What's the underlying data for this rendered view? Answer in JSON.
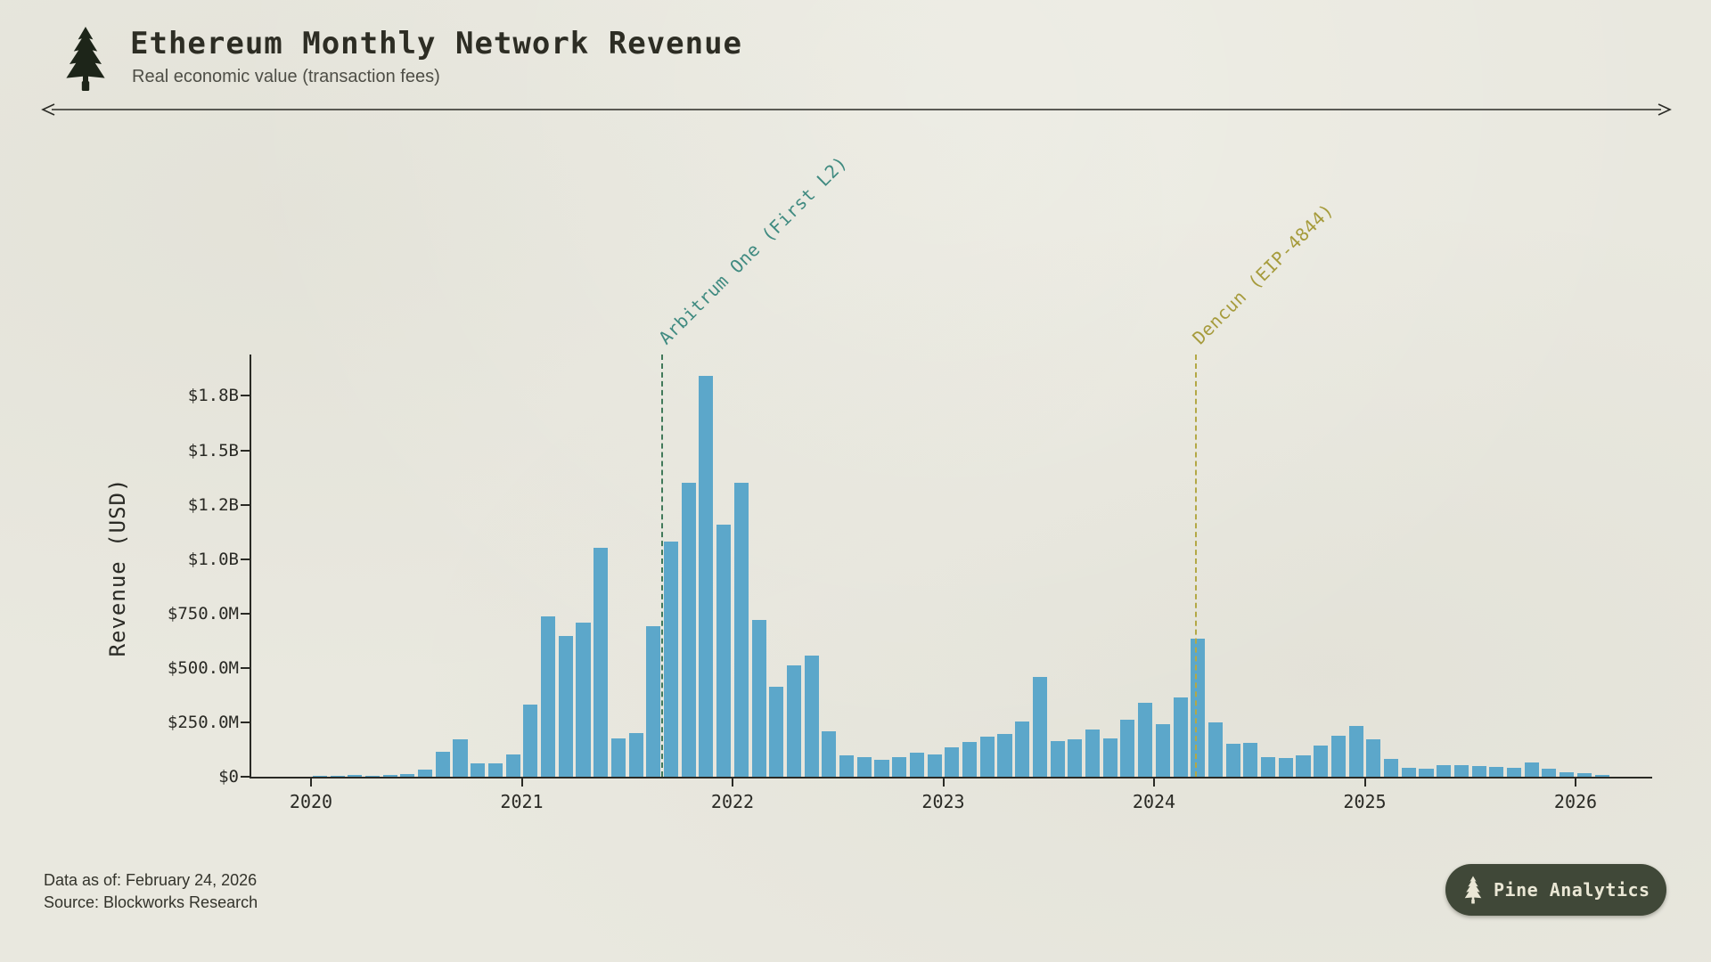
{
  "header": {
    "title": "Ethereum Monthly Network Revenue",
    "subtitle": "Real economic value (transaction fees)"
  },
  "footer": {
    "data_as_of": "Data as of: February 24, 2026",
    "source": "Source: Blockworks Research"
  },
  "badge": {
    "label": "Pine Analytics"
  },
  "colors": {
    "background": "#e9e8df",
    "bar": "#5ca7ca",
    "ink": "#2a2a25",
    "arbitrum_line": "#41795a",
    "arbitrum_text": "#3f8a80",
    "dencun_line": "#b3a846",
    "dencun_text": "#a69b3c"
  },
  "chart_data": {
    "type": "bar",
    "title": "Ethereum Monthly Network Revenue",
    "subtitle": "Real economic value (transaction fees)",
    "xlabel": "",
    "ylabel": "Revenue (USD)",
    "unit": "USD millions",
    "grid": false,
    "legend": false,
    "ylim": [
      0,
      1940
    ],
    "y_ticks": [
      {
        "value": 0,
        "label": "$0"
      },
      {
        "value": 250,
        "label": "$250.0M"
      },
      {
        "value": 500,
        "label": "$500.0M"
      },
      {
        "value": 750,
        "label": "$750.0M"
      },
      {
        "value": 1000,
        "label": "$1.0B"
      },
      {
        "value": 1250,
        "label": "$1.2B"
      },
      {
        "value": 1500,
        "label": "$1.5B"
      },
      {
        "value": 1750,
        "label": "$1.8B"
      }
    ],
    "x_ticks": [
      "2020",
      "2021",
      "2022",
      "2023",
      "2024",
      "2025",
      "2026"
    ],
    "months": [
      "2020-01",
      "2020-02",
      "2020-03",
      "2020-04",
      "2020-05",
      "2020-06",
      "2020-07",
      "2020-08",
      "2020-09",
      "2020-10",
      "2020-11",
      "2020-12",
      "2021-01",
      "2021-02",
      "2021-03",
      "2021-04",
      "2021-05",
      "2021-06",
      "2021-07",
      "2021-08",
      "2021-09",
      "2021-10",
      "2021-11",
      "2021-12",
      "2022-01",
      "2022-02",
      "2022-03",
      "2022-04",
      "2022-05",
      "2022-06",
      "2022-07",
      "2022-08",
      "2022-09",
      "2022-10",
      "2022-11",
      "2022-12",
      "2023-01",
      "2023-02",
      "2023-03",
      "2023-04",
      "2023-05",
      "2023-06",
      "2023-07",
      "2023-08",
      "2023-09",
      "2023-10",
      "2023-11",
      "2023-12",
      "2024-01",
      "2024-02",
      "2024-03",
      "2024-04",
      "2024-05",
      "2024-06",
      "2024-07",
      "2024-08",
      "2024-09",
      "2024-10",
      "2024-11",
      "2024-12",
      "2025-01",
      "2025-02",
      "2025-03",
      "2025-04",
      "2025-05",
      "2025-06",
      "2025-07",
      "2025-08",
      "2025-09",
      "2025-10",
      "2025-11",
      "2025-12",
      "2026-01",
      "2026-02"
    ],
    "values_musd": [
      3,
      4,
      7,
      5,
      9,
      14,
      32,
      115,
      172,
      62,
      60,
      102,
      330,
      735,
      645,
      710,
      1050,
      175,
      200,
      690,
      1080,
      1350,
      1840,
      1160,
      1350,
      720,
      415,
      510,
      555,
      210,
      100,
      92,
      78,
      88,
      112,
      104,
      135,
      160,
      185,
      195,
      255,
      460,
      165,
      170,
      215,
      175,
      260,
      340,
      240,
      365,
      635,
      250,
      150,
      155,
      90,
      85,
      100,
      145,
      190,
      235,
      170,
      80,
      40,
      35,
      55,
      55,
      50,
      45,
      40,
      65,
      35,
      20,
      15,
      10
    ],
    "annotations": [
      {
        "label": "Arbitrum One (First L2)",
        "date": "2021-09-01",
        "month_index": 20.0,
        "line_color": "#41795a",
        "text_color": "#3f8a80"
      },
      {
        "label": "Dencun (EIP-4844)",
        "date": "2024-03-13",
        "month_index": 50.4,
        "line_color": "#b3a846",
        "text_color": "#a69b3c"
      }
    ]
  }
}
